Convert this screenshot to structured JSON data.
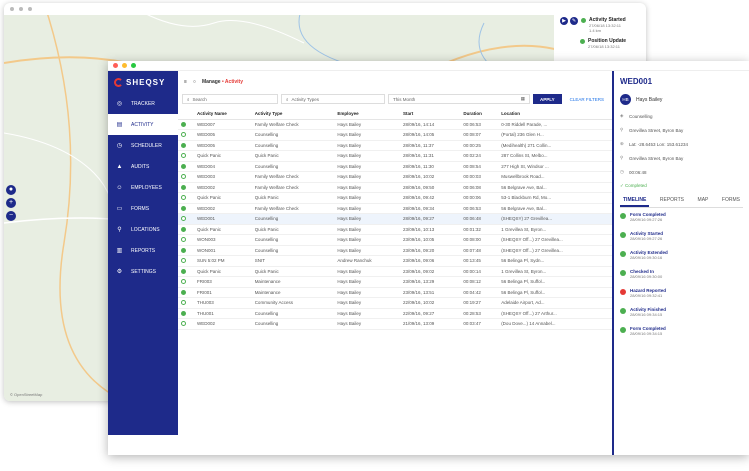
{
  "map_window": {
    "zoom_in": "+",
    "zoom_out": "−",
    "events": [
      {
        "label": "Activity Started",
        "time": "27/06/18 13:32:11",
        "sub": "1.4 km"
      },
      {
        "label": "Position Update",
        "time": "27/06/18 13:32:11",
        "sub": ""
      }
    ]
  },
  "app": {
    "logo": "SHEQSY"
  },
  "sidebar": {
    "items": [
      {
        "label": "TRACKER",
        "icon": "tracker-icon",
        "glyph": "◎",
        "active": false
      },
      {
        "label": "ACTIVITY",
        "icon": "activity-icon",
        "glyph": "▤",
        "active": true
      },
      {
        "label": "SCHEDULER",
        "icon": "scheduler-icon",
        "glyph": "◷",
        "active": false
      },
      {
        "label": "AUDITS",
        "icon": "audits-icon",
        "glyph": "▲",
        "active": false
      },
      {
        "label": "EMPLOYEES",
        "icon": "employees-icon",
        "glyph": "☺",
        "active": false
      },
      {
        "label": "FORMS",
        "icon": "forms-icon",
        "glyph": "▭",
        "active": false
      },
      {
        "label": "LOCATIONS",
        "icon": "locations-icon",
        "glyph": "⚲",
        "active": false
      },
      {
        "label": "REPORTS",
        "icon": "reports-icon",
        "glyph": "▥",
        "active": false
      },
      {
        "label": "SETTINGS",
        "icon": "settings-icon",
        "glyph": "⚙",
        "active": false
      }
    ]
  },
  "header": {
    "breadcrumb_prefix": "Manage",
    "breadcrumb_sep": " • ",
    "breadcrumb_current": "Activity"
  },
  "filters": {
    "search_placeholder": "Search",
    "activity_types_placeholder": "Activity Types",
    "date_value": "This Month",
    "apply_label": "APPLY",
    "clear_label": "CLEAR FILTERS"
  },
  "table": {
    "headers": [
      "",
      "Activity Name",
      "Activity Type",
      "Employee",
      "Start",
      "Duration",
      "Location"
    ],
    "rows": [
      [
        "WED007",
        "Family Welfare Check",
        "Hays Bailey",
        "28/09/16, 14:14",
        "00:06:53",
        "0-30 Riddell Parade, ..."
      ],
      [
        "WED005",
        "Counselling",
        "Hays Bailey",
        "28/09/16, 14:05",
        "00:08:07",
        "(Portal) 236 Glen H..."
      ],
      [
        "WED005",
        "Counselling",
        "Hays Bailey",
        "28/09/16, 11:37",
        "00:00:25",
        "(Medihealth) 271 Collin..."
      ],
      [
        "Quick Panic",
        "Quick Panic",
        "Hays Bailey",
        "28/09/16, 11:31",
        "00:02:24",
        "287 Collins St, Melbo..."
      ],
      [
        "WED004",
        "Counselling",
        "Hays Bailey",
        "28/09/16, 11:30",
        "00:08:54",
        "277 High St, Windsor ..."
      ],
      [
        "WED003",
        "Family Welfare Check",
        "Hays Bailey",
        "28/09/16, 10:02",
        "00:00:03",
        "Muswellbrook Road..."
      ],
      [
        "WED002",
        "Family Welfare Check",
        "Hays Bailey",
        "28/09/16, 09:50",
        "00:06:08",
        "56 Belgrave Ave, Bal..."
      ],
      [
        "Quick Panic",
        "Quick Panic",
        "Hays Bailey",
        "28/09/16, 09:42",
        "00:00:06",
        "53-1 Blackburn Rd, Mo..."
      ],
      [
        "WED002",
        "Family Welfare Check",
        "Hays Bailey",
        "28/09/16, 09:34",
        "00:06:53",
        "56 Belgrave Ave, Bal..."
      ],
      [
        "WED001",
        "Counselling",
        "Hays Bailey",
        "28/09/16, 09:27",
        "00:06:48",
        "(SHEQSY) 27 Grevillea..."
      ],
      [
        "Quick Panic",
        "Quick Panic",
        "Hays Bailey",
        "23/09/16, 10:13",
        "00:01:32",
        "1 Grevillea St, Byron..."
      ],
      [
        "WON003",
        "Counselling",
        "Hays Bailey",
        "23/09/16, 10:05",
        "00:08:00",
        "(SHEQSY Off...) 27 Grevillea..."
      ],
      [
        "WON001",
        "Counselling",
        "Hays Bailey",
        "23/09/16, 09:20",
        "00:07:48",
        "(SHEQSY Off...) 27 Grevillea..."
      ],
      [
        "SUN 5:02 PM",
        "SNIT",
        "Andrew Ranchuk",
        "23/09/16, 09:06",
        "00:13:45",
        "56 Belinga Pl, Sydn..."
      ],
      [
        "Quick Panic",
        "Quick Panic",
        "Hays Bailey",
        "23/09/16, 09:02",
        "00:00:14",
        "1 Grevillea St, Byron..."
      ],
      [
        "FRI003",
        "Maintenance",
        "Hays Bailey",
        "23/09/16, 13:29",
        "00:08:12",
        "56 Belinga Pl, Suffol..."
      ],
      [
        "FRI001",
        "Maintenance",
        "Hays Bailey",
        "23/09/16, 13:51",
        "00:04:42",
        "56 Belinga Pl, Suffol..."
      ],
      [
        "THU003",
        "Community Access",
        "Hays Bailey",
        "22/09/16, 10:02",
        "00:19:27",
        "Adelaide Airport, Ad..."
      ],
      [
        "THU001",
        "Counselling",
        "Hays Bailey",
        "22/09/16, 09:27",
        "00:28:53",
        "(SHEQSY Off...) 27 Arthur..."
      ],
      [
        "WED002",
        "Counselling",
        "Hays Bailey",
        "21/09/16, 13:09",
        "00:03:47",
        "(Dou Dove...) 14 Annabel..."
      ]
    ]
  },
  "panel": {
    "title": "WED001",
    "avatar": "HB",
    "employee": "Hays Bailey",
    "type": "Counselling",
    "address": "Grevillea Street, Byron Bay",
    "coords": "Lat: -28.6453 Lon: 153.61234",
    "location2": "Grevillea Street, Byron Bay",
    "duration": "00:06:48",
    "status": "Completed",
    "tabs": [
      "TIMELINE",
      "REPORTS",
      "MAP",
      "FORMS"
    ],
    "timeline": [
      {
        "title": "Form Completed",
        "time": "28/09/16 09:27:26",
        "color": "green"
      },
      {
        "title": "Activity Started",
        "time": "28/09/16 09:27:26",
        "color": "green"
      },
      {
        "title": "Activity Extended",
        "time": "28/09/16 09:30:16",
        "color": "green"
      },
      {
        "title": "Checked In",
        "time": "28/09/16 09:30:00",
        "color": "green"
      },
      {
        "title": "Hazard Reported",
        "time": "28/09/16 09:32:41",
        "color": "red"
      },
      {
        "title": "Activity Finished",
        "time": "28/09/16 09:34:15",
        "color": "green"
      },
      {
        "title": "Form Completed",
        "time": "28/09/16 09:34:15",
        "color": "green"
      }
    ]
  }
}
